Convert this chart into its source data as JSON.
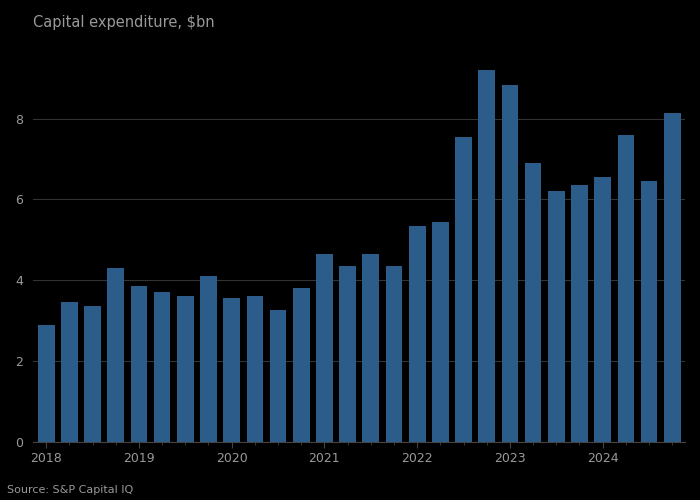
{
  "title": "Capital expenditure, $bn",
  "source": "Source: S&P Capital IQ",
  "bar_color": "#2b5c8a",
  "background_color": "#000000",
  "plot_bg_color": "#000000",
  "text_color": "#999999",
  "grid_color": "#333333",
  "spine_color": "#444444",
  "values": [
    2.9,
    3.45,
    3.35,
    4.3,
    3.85,
    3.7,
    3.6,
    4.1,
    3.55,
    3.6,
    3.25,
    3.8,
    4.65,
    4.35,
    4.65,
    4.35,
    5.35,
    5.45,
    7.55,
    9.2,
    8.85,
    6.9,
    6.2,
    6.35,
    6.55,
    7.6,
    6.45,
    8.15
  ],
  "year_positions": [
    0,
    4,
    8,
    12,
    16,
    20,
    24
  ],
  "year_labels": [
    "2018",
    "2019",
    "2020",
    "2021",
    "2022",
    "2023",
    "2024"
  ],
  "ylim": [
    0,
    10.0
  ],
  "yticks": [
    0,
    2,
    4,
    6,
    8
  ],
  "figsize": [
    7.0,
    5.0
  ],
  "dpi": 100
}
